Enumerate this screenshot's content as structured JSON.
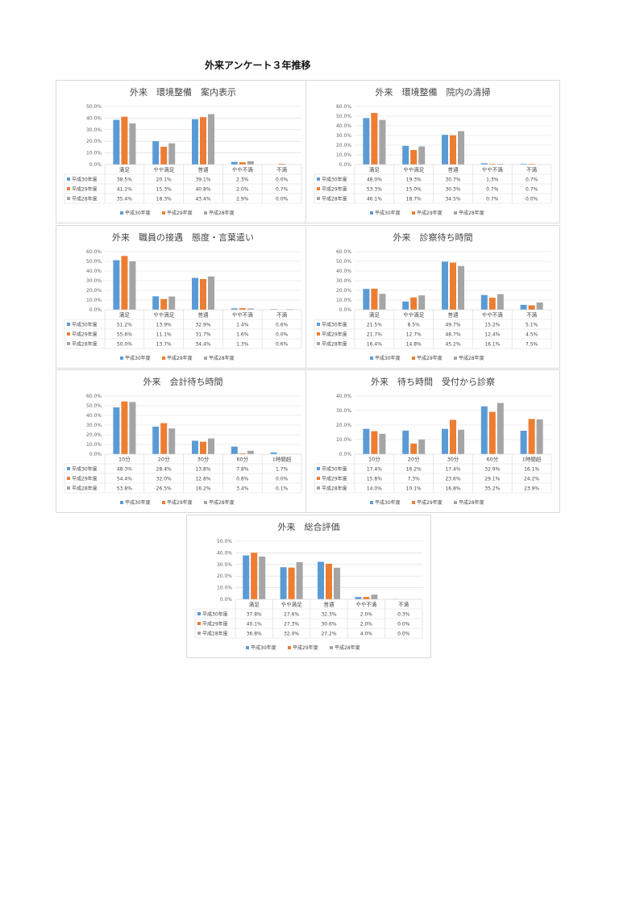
{
  "page": {
    "title": "外来アンケート３年推移"
  },
  "colors": {
    "series": [
      "#5b9bd5",
      "#ed7d31",
      "#a5a5a5"
    ],
    "grid": "#d9d9d9"
  },
  "chart_data": [
    {
      "type": "bar",
      "title": "外来　環境整備　案内表示",
      "categories": [
        "満足",
        "やや満足",
        "普通",
        "やや不満",
        "不満"
      ],
      "ylim": [
        0,
        50
      ],
      "ystep": 10,
      "yticks": [
        "0.0%",
        "10.0%",
        "20.0%",
        "30.0%",
        "40.0%",
        "50.0%"
      ],
      "series": [
        {
          "name": "平成30年度",
          "values": [
            38.5,
            20.1,
            39.1,
            2.3,
            0.0
          ],
          "labels": [
            "38.5%",
            "20.1%",
            "39.1%",
            "2.3%",
            "0.0%"
          ]
        },
        {
          "name": "平成29年度",
          "values": [
            41.2,
            15.3,
            40.8,
            2.0,
            0.7
          ],
          "labels": [
            "41.2%",
            "15.3%",
            "40.8%",
            "2.0%",
            "0.7%"
          ]
        },
        {
          "name": "平成28年度",
          "values": [
            35.4,
            18.3,
            43.4,
            2.9,
            0.0
          ],
          "labels": [
            "35.4%",
            "18.3%",
            "43.4%",
            "2.9%",
            "0.0%"
          ]
        }
      ],
      "legend": "bottom",
      "grid": true
    },
    {
      "type": "bar",
      "title": "外来　環境整備　院内の清掃",
      "categories": [
        "満足",
        "やや満足",
        "普通",
        "やや不満",
        "不満"
      ],
      "ylim": [
        0,
        60
      ],
      "ystep": 10,
      "yticks": [
        "0.0%",
        "10.0%",
        "20.0%",
        "30.0%",
        "40.0%",
        "50.0%",
        "60.0%"
      ],
      "series": [
        {
          "name": "平成30年度",
          "values": [
            48.0,
            19.3,
            30.7,
            1.3,
            0.7
          ],
          "labels": [
            "48.0%",
            "19.3%",
            "30.7%",
            "1.3%",
            "0.7%"
          ]
        },
        {
          "name": "平成29年度",
          "values": [
            53.3,
            15.0,
            30.3,
            0.7,
            0.7
          ],
          "labels": [
            "53.3%",
            "15.0%",
            "30.3%",
            "0.7%",
            "0.7%"
          ]
        },
        {
          "name": "平成28年度",
          "values": [
            46.1,
            18.7,
            34.5,
            0.7,
            0.0
          ],
          "labels": [
            "46.1%",
            "18.7%",
            "34.5%",
            "0.7%",
            "0.0%"
          ]
        }
      ],
      "legend": "bottom",
      "grid": true
    },
    {
      "type": "bar",
      "title": "外来　職員の接遇　態度・言葉遣い",
      "categories": [
        "満足",
        "やや満足",
        "普通",
        "やや不満",
        "不満"
      ],
      "ylim": [
        0,
        60
      ],
      "ystep": 10,
      "yticks": [
        "0.0%",
        "10.0%",
        "20.0%",
        "30.0%",
        "40.0%",
        "50.0%",
        "60.0%"
      ],
      "series": [
        {
          "name": "平成30年度",
          "values": [
            51.2,
            13.9,
            32.9,
            1.4,
            0.6
          ],
          "labels": [
            "51.2%",
            "13.9%",
            "32.9%",
            "1.4%",
            "0.6%"
          ]
        },
        {
          "name": "平成29年度",
          "values": [
            55.6,
            11.1,
            31.7,
            1.6,
            0.0
          ],
          "labels": [
            "55.6%",
            "11.1%",
            "31.7%",
            "1.6%",
            "0.0%"
          ]
        },
        {
          "name": "平成28年度",
          "values": [
            50.0,
            13.7,
            34.4,
            1.3,
            0.6
          ],
          "labels": [
            "50.0%",
            "13.7%",
            "34.4%",
            "1.3%",
            "0.6%"
          ]
        }
      ],
      "legend": "bottom",
      "grid": true
    },
    {
      "type": "bar",
      "title": "外来　診察待ち時間",
      "categories": [
        "満足",
        "やや満足",
        "普通",
        "やや不満",
        "不満"
      ],
      "ylim": [
        0,
        60
      ],
      "ystep": 10,
      "yticks": [
        "0.0%",
        "10.0%",
        "20.0%",
        "30.0%",
        "40.0%",
        "50.0%",
        "60.0%"
      ],
      "series": [
        {
          "name": "平成30年度",
          "values": [
            21.5,
            8.5,
            49.7,
            15.2,
            5.1
          ],
          "labels": [
            "21.5%",
            "8.5%",
            "49.7%",
            "15.2%",
            "5.1%"
          ]
        },
        {
          "name": "平成29年度",
          "values": [
            21.7,
            12.7,
            48.7,
            12.4,
            4.5
          ],
          "labels": [
            "21.7%",
            "12.7%",
            "48.7%",
            "12.4%",
            "4.5%"
          ]
        },
        {
          "name": "平成28年度",
          "values": [
            16.4,
            14.8,
            45.2,
            16.1,
            7.5
          ],
          "labels": [
            "16.4%",
            "14.8%",
            "45.2%",
            "16.1%",
            "7.5%"
          ]
        }
      ],
      "legend": "bottom",
      "grid": true
    },
    {
      "type": "bar",
      "title": "外来　会計待ち時間",
      "categories": [
        "10分",
        "20分",
        "30分",
        "60分",
        "1時間超"
      ],
      "ylim": [
        0,
        60
      ],
      "ystep": 10,
      "yticks": [
        "0.0%",
        "10.0%",
        "20.0%",
        "30.0%",
        "40.0%",
        "50.0%",
        "60.0%"
      ],
      "series": [
        {
          "name": "平成30年度",
          "values": [
            48.3,
            28.4,
            13.8,
            7.8,
            1.7
          ],
          "labels": [
            "48.3%",
            "28.4%",
            "13.8%",
            "7.8%",
            "1.7%"
          ]
        },
        {
          "name": "平成29年度",
          "values": [
            54.4,
            32.0,
            12.8,
            0.8,
            0.0
          ],
          "labels": [
            "54.4%",
            "32.0%",
            "12.8%",
            "0.8%",
            "0.0%"
          ]
        },
        {
          "name": "平成28年度",
          "values": [
            53.8,
            26.5,
            16.2,
            3.4,
            0.1
          ],
          "labels": [
            "53.8%",
            "26.5%",
            "16.2%",
            "3.4%",
            "0.1%"
          ]
        }
      ],
      "legend": "bottom",
      "grid": true
    },
    {
      "type": "bar",
      "title": "外来　待ち時間　受付から診察",
      "categories": [
        "10分",
        "20分",
        "30分",
        "60分",
        "1時間超"
      ],
      "ylim": [
        0,
        40
      ],
      "ystep": 10,
      "yticks": [
        "0.0%",
        "10.0%",
        "20.0%",
        "30.0%",
        "40.0%"
      ],
      "series": [
        {
          "name": "平成30年度",
          "values": [
            17.4,
            16.2,
            17.4,
            32.9,
            16.1
          ],
          "labels": [
            "17.4%",
            "16.2%",
            "17.4%",
            "32.9%",
            "16.1%"
          ]
        },
        {
          "name": "平成29年度",
          "values": [
            15.8,
            7.3,
            23.6,
            29.1,
            24.2
          ],
          "labels": [
            "15.8%",
            "7.3%",
            "23.6%",
            "29.1%",
            "24.2%"
          ]
        },
        {
          "name": "平成28年度",
          "values": [
            14.0,
            10.1,
            16.8,
            35.2,
            23.9
          ],
          "labels": [
            "14.0%",
            "10.1%",
            "16.8%",
            "35.2%",
            "23.9%"
          ]
        }
      ],
      "legend": "bottom",
      "grid": true
    },
    {
      "type": "bar",
      "title": "外来　総合評価",
      "categories": [
        "満足",
        "やや満足",
        "普通",
        "やや不満",
        "不満"
      ],
      "ylim": [
        0,
        50
      ],
      "ystep": 10,
      "yticks": [
        "0.0%",
        "10.0%",
        "20.0%",
        "30.0%",
        "40.0%",
        "50.0%"
      ],
      "series": [
        {
          "name": "平成30年度",
          "values": [
            37.8,
            27.6,
            32.3,
            2.0,
            0.3
          ],
          "labels": [
            "37.8%",
            "27.6%",
            "32.3%",
            "2.0%",
            "0.3%"
          ]
        },
        {
          "name": "平成29年度",
          "values": [
            40.1,
            27.3,
            30.6,
            2.0,
            0.0
          ],
          "labels": [
            "40.1%",
            "27.3%",
            "30.6%",
            "2.0%",
            "0.0%"
          ]
        },
        {
          "name": "平成28年度",
          "values": [
            36.8,
            32.0,
            27.2,
            4.0,
            0.0
          ],
          "labels": [
            "36.8%",
            "32.0%",
            "27.2%",
            "4.0%",
            "0.0%"
          ]
        }
      ],
      "legend": "bottom",
      "grid": true
    }
  ]
}
